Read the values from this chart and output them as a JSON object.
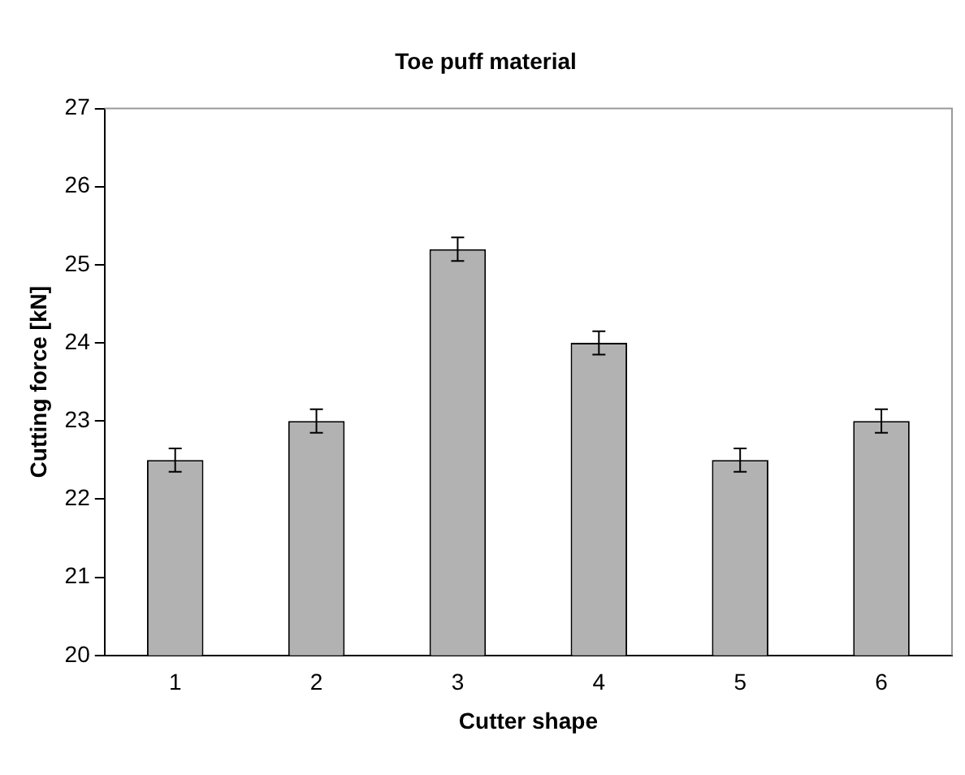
{
  "chart_data": {
    "type": "bar",
    "title": "Toe puff material",
    "xlabel": "Cutter shape",
    "ylabel": "Cutting force [kN]",
    "categories": [
      "1",
      "2",
      "3",
      "4",
      "5",
      "6"
    ],
    "values": [
      22.5,
      23,
      25.2,
      24,
      22.5,
      23
    ],
    "errors": [
      0.15,
      0.15,
      0.15,
      0.15,
      0.15,
      0.15
    ],
    "color": "#b2b2b2",
    "ylim": [
      20,
      27
    ],
    "yticks": [
      20,
      21,
      22,
      23,
      24,
      25,
      26,
      27
    ],
    "grid": false,
    "legend": false
  }
}
